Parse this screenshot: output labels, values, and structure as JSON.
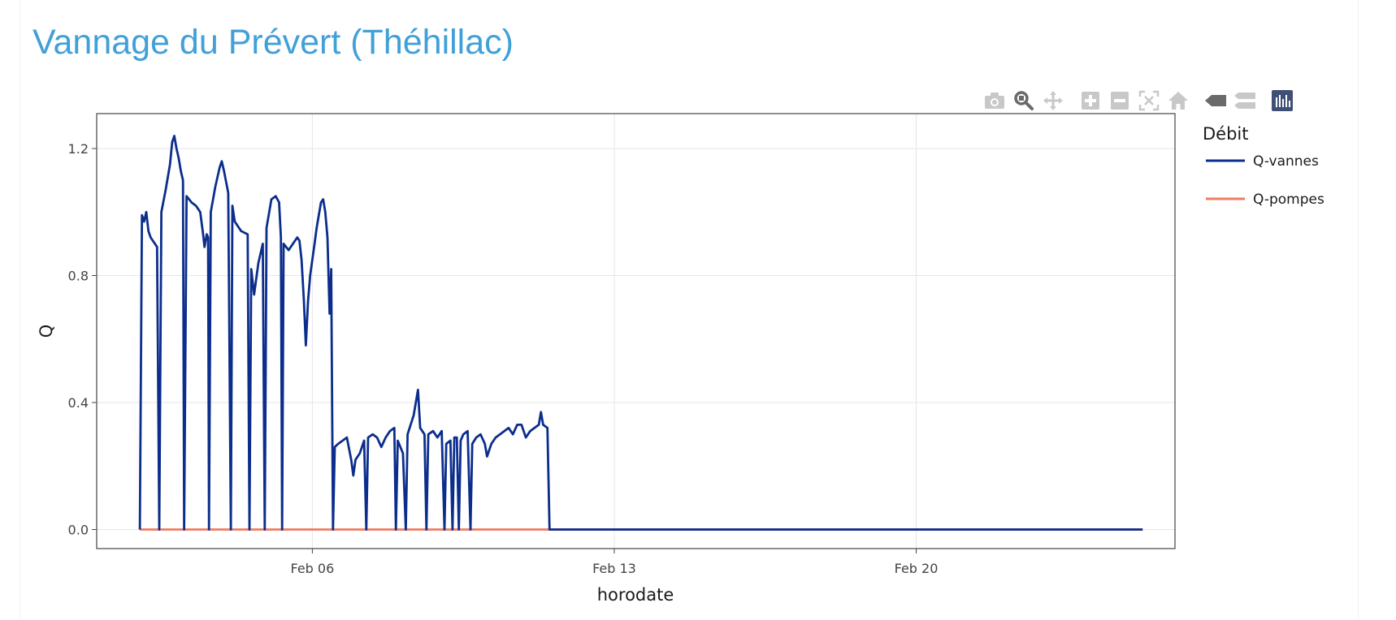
{
  "page": {
    "title": "Vannage du Prévert (Théhillac)",
    "title_color": "#41a0d8"
  },
  "modebar": {
    "icons": [
      "camera-icon",
      "zoom-icon",
      "pan-icon",
      "zoom-in-icon",
      "zoom-out-icon",
      "autoscale-icon",
      "home-icon",
      "spike-lines-icon",
      "compare-hover-icon",
      "plotly-logo-icon"
    ],
    "icon_color": "#c8c8c8",
    "active_color": "#6a6a6a",
    "logo_color": "#3f4f75"
  },
  "chart_data": {
    "type": "line",
    "xlabel": "horodate",
    "ylabel": "Q",
    "xlim": [
      "2025-02-01",
      "2025-02-26"
    ],
    "ylim": [
      -0.06,
      1.31
    ],
    "xticks": [
      "2025-02-06",
      "2025-02-13",
      "2025-02-20"
    ],
    "xtick_labels": [
      "Feb 06",
      "Feb 13",
      "Feb 20"
    ],
    "yticks": [
      0,
      0.4,
      0.8,
      1.2
    ],
    "ytick_labels": [
      "0.0",
      "0.4",
      "0.8",
      "1.2"
    ],
    "grid": true,
    "legend": {
      "title": "Débit",
      "placement": "right"
    },
    "series": [
      {
        "name": "Q-vannes",
        "color": "#0b2d8c",
        "points": [
          [
            "2025-02-02T00:00",
            0
          ],
          [
            "2025-02-02T01:12",
            0.99
          ],
          [
            "2025-02-02T02:24",
            0.97
          ],
          [
            "2025-02-02T03:36",
            1.0
          ],
          [
            "2025-02-02T04:48",
            0.94
          ],
          [
            "2025-02-02T06:00",
            0.92
          ],
          [
            "2025-02-02T07:12",
            0.91
          ],
          [
            "2025-02-02T08:24",
            0.9
          ],
          [
            "2025-02-02T09:36",
            0.89
          ],
          [
            "2025-02-02T10:48",
            0
          ],
          [
            "2025-02-02T12:00",
            1.0
          ],
          [
            "2025-02-02T14:24",
            1.07
          ],
          [
            "2025-02-02T16:48",
            1.15
          ],
          [
            "2025-02-02T18:00",
            1.22
          ],
          [
            "2025-02-02T19:12",
            1.24
          ],
          [
            "2025-02-02T20:24",
            1.2
          ],
          [
            "2025-02-02T21:36",
            1.17
          ],
          [
            "2025-02-02T22:48",
            1.13
          ],
          [
            "2025-02-03T00:00",
            1.1
          ],
          [
            "2025-02-03T00:40",
            0
          ],
          [
            "2025-02-03T02:00",
            1.05
          ],
          [
            "2025-02-03T04:48",
            1.03
          ],
          [
            "2025-02-03T07:12",
            1.02
          ],
          [
            "2025-02-03T09:36",
            1.0
          ],
          [
            "2025-02-03T11:00",
            0.94
          ],
          [
            "2025-02-03T12:00",
            0.89
          ],
          [
            "2025-02-03T13:12",
            0.93
          ],
          [
            "2025-02-03T14:00",
            0.92
          ],
          [
            "2025-02-03T14:30",
            0
          ],
          [
            "2025-02-03T15:30",
            1.0
          ],
          [
            "2025-02-03T18:00",
            1.08
          ],
          [
            "2025-02-03T20:24",
            1.14
          ],
          [
            "2025-02-03T21:36",
            1.16
          ],
          [
            "2025-02-03T22:48",
            1.13
          ],
          [
            "2025-02-04T01:12",
            1.06
          ],
          [
            "2025-02-04T02:40",
            0
          ],
          [
            "2025-02-04T03:30",
            1.02
          ],
          [
            "2025-02-04T04:48",
            0.97
          ],
          [
            "2025-02-04T08:24",
            0.94
          ],
          [
            "2025-02-04T12:00",
            0.93
          ],
          [
            "2025-02-04T13:00",
            0
          ],
          [
            "2025-02-04T14:00",
            0.82
          ],
          [
            "2025-02-04T15:36",
            0.74
          ],
          [
            "2025-02-04T18:00",
            0.84
          ],
          [
            "2025-02-04T20:24",
            0.9
          ],
          [
            "2025-02-04T21:30",
            0
          ],
          [
            "2025-02-04T22:30",
            0.95
          ],
          [
            "2025-02-05T01:12",
            1.04
          ],
          [
            "2025-02-05T03:36",
            1.05
          ],
          [
            "2025-02-05T05:30",
            1.03
          ],
          [
            "2025-02-05T06:30",
            0.92
          ],
          [
            "2025-02-05T07:12",
            0
          ],
          [
            "2025-02-05T08:00",
            0.9
          ],
          [
            "2025-02-05T10:48",
            0.88
          ],
          [
            "2025-02-05T13:12",
            0.9
          ],
          [
            "2025-02-05T15:36",
            0.92
          ],
          [
            "2025-02-05T16:48",
            0.91
          ],
          [
            "2025-02-05T18:00",
            0.85
          ],
          [
            "2025-02-05T19:12",
            0.73
          ],
          [
            "2025-02-05T20:24",
            0.58
          ],
          [
            "2025-02-05T21:36",
            0.72
          ],
          [
            "2025-02-05T22:48",
            0.8
          ],
          [
            "2025-02-06T01:12",
            0.9
          ],
          [
            "2025-02-06T02:24",
            0.95
          ],
          [
            "2025-02-06T04:48",
            1.03
          ],
          [
            "2025-02-06T06:00",
            1.04
          ],
          [
            "2025-02-06T07:12",
            1.0
          ],
          [
            "2025-02-06T08:24",
            0.92
          ],
          [
            "2025-02-06T09:36",
            0.68
          ],
          [
            "2025-02-06T10:30",
            0.82
          ],
          [
            "2025-02-06T11:30",
            0
          ],
          [
            "2025-02-06T12:30",
            0.26
          ],
          [
            "2025-02-06T14:24",
            0.27
          ],
          [
            "2025-02-06T16:48",
            0.28
          ],
          [
            "2025-02-06T19:12",
            0.29
          ],
          [
            "2025-02-06T21:36",
            0.22
          ],
          [
            "2025-02-06T22:48",
            0.17
          ],
          [
            "2025-02-07T00:00",
            0.22
          ],
          [
            "2025-02-07T02:24",
            0.24
          ],
          [
            "2025-02-07T04:48",
            0.28
          ],
          [
            "2025-02-07T06:00",
            0
          ],
          [
            "2025-02-07T07:00",
            0.29
          ],
          [
            "2025-02-07T09:36",
            0.3
          ],
          [
            "2025-02-07T12:00",
            0.29
          ],
          [
            "2025-02-07T14:24",
            0.26
          ],
          [
            "2025-02-07T16:48",
            0.29
          ],
          [
            "2025-02-07T19:12",
            0.31
          ],
          [
            "2025-02-07T21:36",
            0.32
          ],
          [
            "2025-02-07T22:30",
            0
          ],
          [
            "2025-02-07T23:30",
            0.28
          ],
          [
            "2025-02-08T02:24",
            0.24
          ],
          [
            "2025-02-08T04:00",
            0
          ],
          [
            "2025-02-08T05:00",
            0.3
          ],
          [
            "2025-02-08T08:24",
            0.36
          ],
          [
            "2025-02-08T10:48",
            0.44
          ],
          [
            "2025-02-08T12:00",
            0.32
          ],
          [
            "2025-02-08T14:24",
            0.3
          ],
          [
            "2025-02-08T15:30",
            0
          ],
          [
            "2025-02-08T16:30",
            0.3
          ],
          [
            "2025-02-08T19:12",
            0.31
          ],
          [
            "2025-02-08T21:36",
            0.29
          ],
          [
            "2025-02-09T00:00",
            0.31
          ],
          [
            "2025-02-09T01:30",
            0
          ],
          [
            "2025-02-09T02:30",
            0.27
          ],
          [
            "2025-02-09T04:48",
            0.28
          ],
          [
            "2025-02-09T06:00",
            0
          ],
          [
            "2025-02-09T07:00",
            0.29
          ],
          [
            "2025-02-09T08:24",
            0.29
          ],
          [
            "2025-02-09T09:30",
            0
          ],
          [
            "2025-02-09T10:30",
            0.28
          ],
          [
            "2025-02-09T12:00",
            0.3
          ],
          [
            "2025-02-09T14:24",
            0.31
          ],
          [
            "2025-02-09T16:00",
            0
          ],
          [
            "2025-02-09T17:00",
            0.27
          ],
          [
            "2025-02-09T19:12",
            0.29
          ],
          [
            "2025-02-09T21:36",
            0.3
          ],
          [
            "2025-02-10T00:00",
            0.27
          ],
          [
            "2025-02-10T01:12",
            0.23
          ],
          [
            "2025-02-10T03:36",
            0.27
          ],
          [
            "2025-02-10T06:00",
            0.29
          ],
          [
            "2025-02-10T08:24",
            0.3
          ],
          [
            "2025-02-10T10:48",
            0.31
          ],
          [
            "2025-02-10T13:12",
            0.32
          ],
          [
            "2025-02-10T15:36",
            0.3
          ],
          [
            "2025-02-10T18:00",
            0.33
          ],
          [
            "2025-02-10T20:24",
            0.33
          ],
          [
            "2025-02-10T22:48",
            0.29
          ],
          [
            "2025-02-11T01:12",
            0.31
          ],
          [
            "2025-02-11T03:36",
            0.32
          ],
          [
            "2025-02-11T06:00",
            0.33
          ],
          [
            "2025-02-11T07:12",
            0.37
          ],
          [
            "2025-02-11T08:24",
            0.33
          ],
          [
            "2025-02-11T10:48",
            0.32
          ],
          [
            "2025-02-11T12:00",
            0
          ],
          [
            "2025-02-25T06:00",
            0
          ]
        ]
      },
      {
        "name": "Q-pompes",
        "color": "#ed7b63",
        "points": [
          [
            "2025-02-02T00:00",
            0
          ],
          [
            "2025-02-25T06:00",
            0
          ]
        ]
      }
    ]
  }
}
